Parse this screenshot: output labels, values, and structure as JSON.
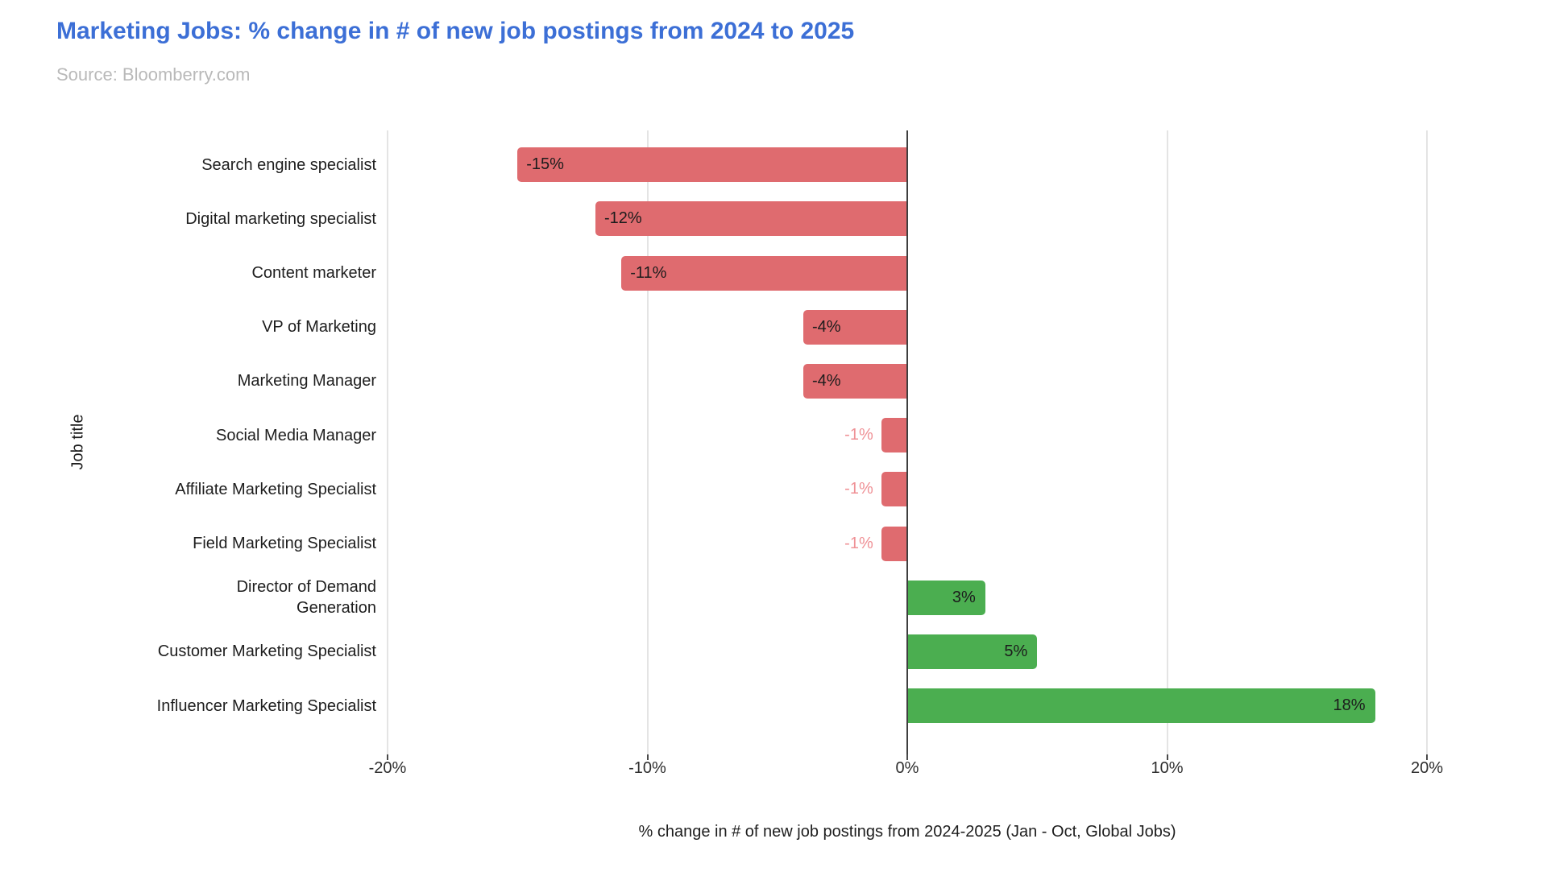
{
  "header": {
    "title": "Marketing Jobs: % change in # of new job postings from 2024 to 2025",
    "source": "Source: Bloomberry.com",
    "title_color": "#3c6fd6",
    "source_color": "#b9b9b9"
  },
  "chart_data": {
    "type": "bar",
    "orientation": "horizontal",
    "title": "Marketing Jobs: % change in # of new job postings from 2024 to 2025",
    "xlabel": "% change in # of new job postings from 2024-2025 (Jan - Oct, Global Jobs)",
    "ylabel": "Job title",
    "categories": [
      "Search engine specialist",
      "Digital marketing specialist",
      "Content marketer",
      "VP of Marketing",
      "Marketing Manager",
      "Social Media Manager",
      "Affiliate Marketing Specialist",
      "Field Marketing Specialist",
      "Director of Demand\nGeneration",
      "Customer Marketing Specialist",
      "Influencer Marketing Specialist"
    ],
    "values": [
      -15,
      -12,
      -11,
      -4,
      -4,
      -1,
      -1,
      -1,
      3,
      5,
      18
    ],
    "value_labels": [
      "-15%",
      "-12%",
      "-11%",
      "-4%",
      "-4%",
      "-1%",
      "-1%",
      "-1%",
      "3%",
      "5%",
      "18%"
    ],
    "xlim": [
      -20,
      20
    ],
    "xticks": [
      -20,
      -10,
      0,
      10,
      20
    ],
    "xtick_labels": [
      "-20%",
      "-10%",
      "0%",
      "10%",
      "20%"
    ],
    "grid": true,
    "legend": false,
    "colors": {
      "negative_bar": "#df6b6f",
      "positive_bar": "#4bae50",
      "label_inside": "#1c1c1c",
      "label_outside": "#ef9196"
    }
  }
}
